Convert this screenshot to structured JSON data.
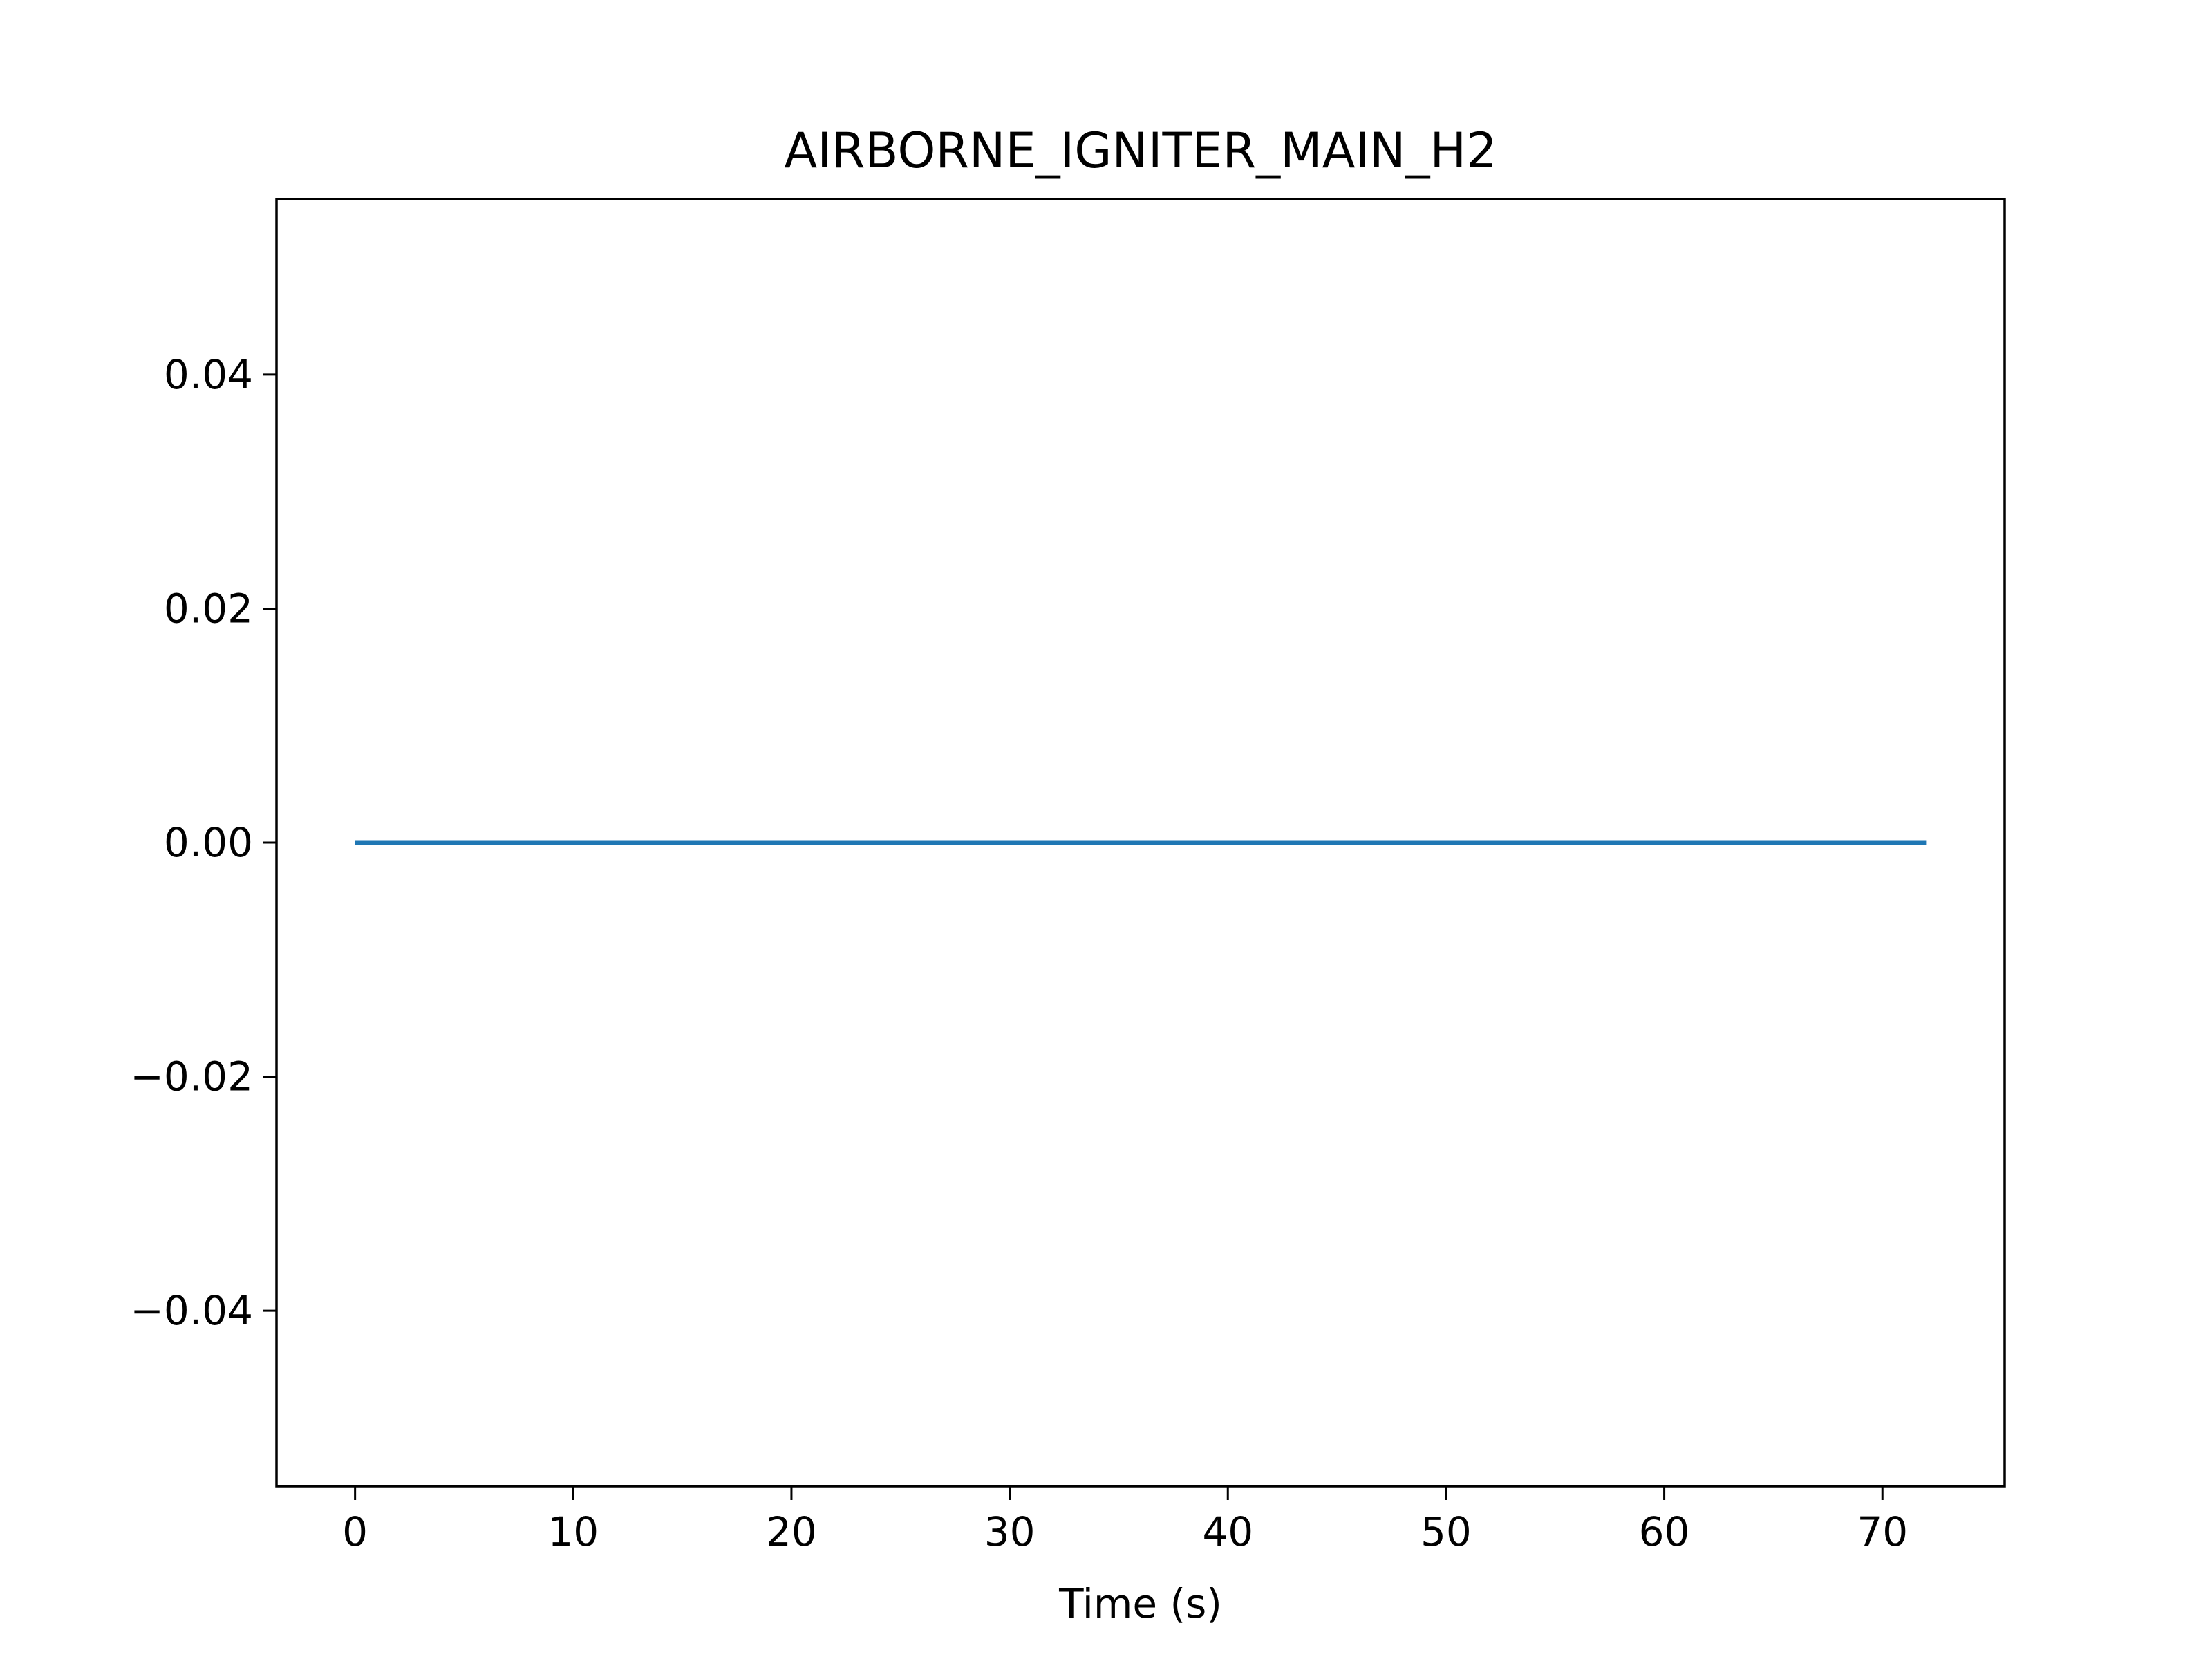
{
  "chart_data": {
    "type": "line",
    "title": "AIRBORNE_IGNITER_MAIN_H2",
    "xlabel": "Time (s)",
    "ylabel": "",
    "xlim": [
      -3.6,
      75.6
    ],
    "ylim": [
      -0.055,
      0.055
    ],
    "xticks": [
      0,
      10,
      20,
      30,
      40,
      50,
      60,
      70
    ],
    "xtick_labels": [
      "0",
      "10",
      "20",
      "30",
      "40",
      "50",
      "60",
      "70"
    ],
    "yticks": [
      -0.04,
      -0.02,
      0.0,
      0.02,
      0.04
    ],
    "ytick_labels": [
      "−0.04",
      "−0.02",
      "0.00",
      "0.02",
      "0.04"
    ],
    "grid": false,
    "legend": "none",
    "series": [
      {
        "color": "#1f77b4",
        "x": [
          0,
          72
        ],
        "y": [
          0,
          0
        ]
      }
    ]
  }
}
